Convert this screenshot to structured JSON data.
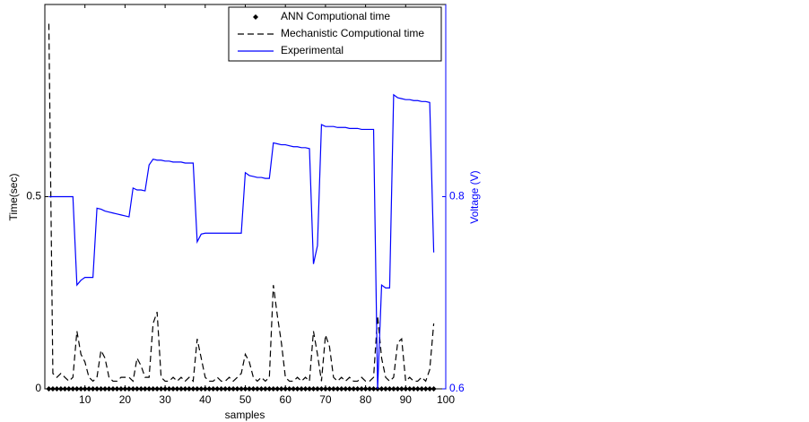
{
  "chart_data": {
    "type": "line",
    "xlabel": "samples",
    "ylabel": "Time(sec)",
    "y2label": "Voltage (V)",
    "x": [
      1,
      2,
      3,
      4,
      5,
      6,
      7,
      8,
      9,
      10,
      11,
      12,
      13,
      14,
      15,
      16,
      17,
      18,
      19,
      20,
      21,
      22,
      23,
      24,
      25,
      26,
      27,
      28,
      29,
      30,
      31,
      32,
      33,
      34,
      35,
      36,
      37,
      38,
      39,
      40,
      41,
      42,
      43,
      44,
      45,
      46,
      47,
      48,
      49,
      50,
      51,
      52,
      53,
      54,
      55,
      56,
      57,
      58,
      59,
      60,
      61,
      62,
      63,
      64,
      65,
      66,
      67,
      68,
      69,
      70,
      71,
      72,
      73,
      74,
      75,
      76,
      77,
      78,
      79,
      80,
      81,
      82,
      83,
      84,
      85,
      86,
      87,
      88,
      89,
      90,
      91,
      92,
      93,
      94,
      95,
      96,
      97
    ],
    "xlim": [
      0,
      100
    ],
    "xticks": [
      10,
      20,
      30,
      40,
      50,
      60,
      70,
      80,
      90,
      100
    ],
    "ylim": [
      0,
      1
    ],
    "yticks": [
      0,
      0.5
    ],
    "y2lim": [
      0.6,
      1.0
    ],
    "y2ticks": [
      0.6,
      0.8
    ],
    "y2color": "#0000ff",
    "legend": "upper right",
    "series": [
      {
        "name": "ANN Computional time",
        "color": "#000000",
        "linestyle": "none",
        "marker": "diamond",
        "values": [
          0,
          0,
          0,
          0,
          0,
          0,
          0,
          0,
          0,
          0,
          0,
          0,
          0,
          0,
          0,
          0,
          0,
          0,
          0,
          0,
          0,
          0,
          0,
          0,
          0,
          0,
          0,
          0,
          0,
          0,
          0,
          0,
          0,
          0,
          0,
          0,
          0,
          0,
          0,
          0,
          0,
          0,
          0,
          0,
          0,
          0,
          0,
          0,
          0,
          0,
          0,
          0,
          0,
          0,
          0,
          0,
          0,
          0,
          0,
          0,
          0,
          0,
          0,
          0,
          0,
          0,
          0,
          0,
          0,
          0,
          0,
          0,
          0,
          0,
          0,
          0,
          0,
          0,
          0,
          0,
          0,
          0,
          0,
          0,
          0,
          0,
          0,
          0,
          0,
          0,
          0,
          0,
          0,
          0,
          0,
          0,
          0
        ]
      },
      {
        "name": "Mechanistic Computional time",
        "color": "#000000",
        "linestyle": "--",
        "marker": "none",
        "values": [
          0.95,
          0.04,
          0.03,
          0.04,
          0.03,
          0.02,
          0.03,
          0.15,
          0.09,
          0.07,
          0.03,
          0.02,
          0.03,
          0.1,
          0.08,
          0.03,
          0.02,
          0.02,
          0.03,
          0.03,
          0.03,
          0.02,
          0.08,
          0.06,
          0.03,
          0.03,
          0.17,
          0.2,
          0.03,
          0.02,
          0.02,
          0.03,
          0.02,
          0.03,
          0.02,
          0.03,
          0.02,
          0.13,
          0.08,
          0.03,
          0.02,
          0.02,
          0.03,
          0.02,
          0.02,
          0.03,
          0.02,
          0.03,
          0.04,
          0.09,
          0.07,
          0.03,
          0.02,
          0.03,
          0.02,
          0.03,
          0.27,
          0.19,
          0.12,
          0.03,
          0.02,
          0.02,
          0.03,
          0.02,
          0.03,
          0.02,
          0.15,
          0.09,
          0.02,
          0.14,
          0.11,
          0.03,
          0.02,
          0.03,
          0.02,
          0.03,
          0.02,
          0.02,
          0.03,
          0.02,
          0.02,
          0.03,
          0.19,
          0.08,
          0.03,
          0.02,
          0.03,
          0.12,
          0.13,
          0.02,
          0.03,
          0.02,
          0.02,
          0.03,
          0.02,
          0.05,
          0.17
        ]
      },
      {
        "name": "Experimental",
        "color": "#0000ff",
        "linestyle": "-",
        "marker": "none",
        "axis": "y2",
        "values": [
          0.8,
          0.8,
          0.8,
          0.8,
          0.8,
          0.8,
          0.8,
          0.708,
          0.713,
          0.716,
          0.716,
          0.716,
          0.788,
          0.787,
          0.785,
          0.784,
          0.783,
          0.782,
          0.781,
          0.78,
          0.779,
          0.809,
          0.807,
          0.807,
          0.806,
          0.833,
          0.839,
          0.838,
          0.838,
          0.837,
          0.837,
          0.836,
          0.836,
          0.836,
          0.835,
          0.835,
          0.835,
          0.753,
          0.761,
          0.762,
          0.762,
          0.762,
          0.762,
          0.762,
          0.762,
          0.762,
          0.762,
          0.762,
          0.762,
          0.825,
          0.822,
          0.821,
          0.82,
          0.82,
          0.819,
          0.819,
          0.856,
          0.855,
          0.854,
          0.854,
          0.853,
          0.852,
          0.852,
          0.851,
          0.851,
          0.85,
          0.73,
          0.749,
          0.875,
          0.873,
          0.873,
          0.873,
          0.872,
          0.872,
          0.872,
          0.871,
          0.871,
          0.871,
          0.87,
          0.87,
          0.87,
          0.87,
          0.6,
          0.708,
          0.705,
          0.705,
          0.906,
          0.903,
          0.902,
          0.901,
          0.901,
          0.9,
          0.9,
          0.899,
          0.899,
          0.898,
          0.742
        ]
      }
    ]
  }
}
